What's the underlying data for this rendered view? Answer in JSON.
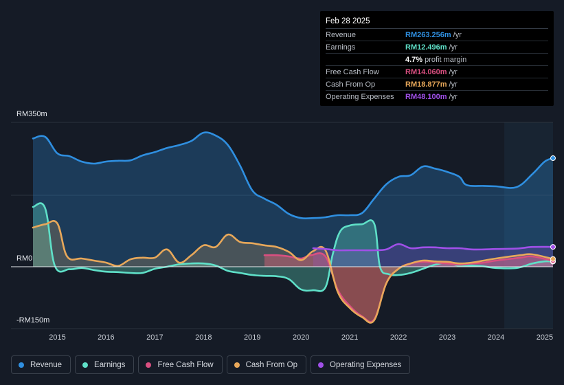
{
  "chart_data": {
    "type": "area",
    "y_unit": "RM",
    "ylim": [
      -150,
      350
    ],
    "y_ticks": [
      {
        "value": 350,
        "label": "RM350m"
      },
      {
        "value": 0,
        "label": "RM0"
      },
      {
        "value": -150,
        "label": "-RM150m"
      }
    ],
    "x_ticks": [
      {
        "value": 2015,
        "label": "2015"
      },
      {
        "value": 2016,
        "label": "2016"
      },
      {
        "value": 2017,
        "label": "2017"
      },
      {
        "value": 2018,
        "label": "2018"
      },
      {
        "value": 2019,
        "label": "2019"
      },
      {
        "value": 2020,
        "label": "2020"
      },
      {
        "value": 2021,
        "label": "2021"
      },
      {
        "value": 2022,
        "label": "2022"
      },
      {
        "value": 2023,
        "label": "2023"
      },
      {
        "value": 2024,
        "label": "2024"
      },
      {
        "value": 2025,
        "label": "2025"
      }
    ],
    "xlim": [
      2014.5,
      2025.17
    ],
    "forecast_start": 2024.17,
    "series": [
      {
        "name": "Revenue",
        "color": "#2f8fe0",
        "points": [
          [
            2014.5,
            311
          ],
          [
            2014.75,
            315
          ],
          [
            2015.0,
            275
          ],
          [
            2015.25,
            268
          ],
          [
            2015.5,
            255
          ],
          [
            2015.75,
            250
          ],
          [
            2016.0,
            255
          ],
          [
            2016.25,
            257
          ],
          [
            2016.5,
            258
          ],
          [
            2016.75,
            270
          ],
          [
            2017.0,
            278
          ],
          [
            2017.25,
            288
          ],
          [
            2017.5,
            295
          ],
          [
            2017.75,
            305
          ],
          [
            2018.0,
            325
          ],
          [
            2018.25,
            318
          ],
          [
            2018.5,
            295
          ],
          [
            2018.75,
            245
          ],
          [
            2019.0,
            185
          ],
          [
            2019.25,
            165
          ],
          [
            2019.5,
            150
          ],
          [
            2019.75,
            128
          ],
          [
            2020.0,
            118
          ],
          [
            2020.25,
            118
          ],
          [
            2020.5,
            120
          ],
          [
            2020.75,
            125
          ],
          [
            2021.0,
            125
          ],
          [
            2021.25,
            130
          ],
          [
            2021.5,
            165
          ],
          [
            2021.75,
            200
          ],
          [
            2022.0,
            218
          ],
          [
            2022.25,
            222
          ],
          [
            2022.5,
            243
          ],
          [
            2022.75,
            238
          ],
          [
            2023.0,
            230
          ],
          [
            2023.25,
            218
          ],
          [
            2023.4,
            198
          ],
          [
            2023.75,
            196
          ],
          [
            2024.0,
            195
          ],
          [
            2024.42,
            193
          ],
          [
            2024.75,
            225
          ],
          [
            2025.0,
            255
          ],
          [
            2025.17,
            263.256
          ]
        ]
      },
      {
        "name": "Earnings",
        "color": "#5fe0c8",
        "points": [
          [
            2014.5,
            145
          ],
          [
            2014.75,
            142
          ],
          [
            2014.95,
            2
          ],
          [
            2015.25,
            -6
          ],
          [
            2015.5,
            -3
          ],
          [
            2015.75,
            -8
          ],
          [
            2016.0,
            -12
          ],
          [
            2016.25,
            -13
          ],
          [
            2016.5,
            -15
          ],
          [
            2016.75,
            -15
          ],
          [
            2017.0,
            -5
          ],
          [
            2017.25,
            0
          ],
          [
            2017.5,
            6
          ],
          [
            2017.75,
            8
          ],
          [
            2018.0,
            8
          ],
          [
            2018.25,
            3
          ],
          [
            2018.5,
            -10
          ],
          [
            2018.75,
            -15
          ],
          [
            2019.0,
            -20
          ],
          [
            2019.25,
            -22
          ],
          [
            2019.5,
            -23
          ],
          [
            2019.75,
            -30
          ],
          [
            2020.0,
            -55
          ],
          [
            2020.25,
            -57
          ],
          [
            2020.5,
            -50
          ],
          [
            2020.65,
            30
          ],
          [
            2020.8,
            85
          ],
          [
            2021.0,
            100
          ],
          [
            2021.25,
            103
          ],
          [
            2021.5,
            105
          ],
          [
            2021.62,
            0
          ],
          [
            2021.8,
            -18
          ],
          [
            2022.0,
            -20
          ],
          [
            2022.25,
            -15
          ],
          [
            2022.5,
            -5
          ],
          [
            2022.75,
            5
          ],
          [
            2023.0,
            10
          ],
          [
            2023.25,
            2
          ],
          [
            2023.5,
            3
          ],
          [
            2023.75,
            1
          ],
          [
            2024.0,
            -3
          ],
          [
            2024.42,
            -3
          ],
          [
            2024.75,
            8
          ],
          [
            2025.0,
            13
          ],
          [
            2025.17,
            12.496
          ]
        ]
      },
      {
        "name": "Free Cash Flow",
        "color": "#d94f80",
        "points": [
          [
            2019.25,
            28
          ],
          [
            2019.5,
            28
          ],
          [
            2019.75,
            25
          ],
          [
            2020.0,
            20
          ],
          [
            2020.2,
            28
          ],
          [
            2020.5,
            25
          ],
          [
            2020.75,
            -55
          ],
          [
            2021.0,
            -95
          ],
          [
            2021.25,
            -120
          ],
          [
            2021.5,
            -128
          ],
          [
            2021.75,
            -40
          ],
          [
            2022.0,
            -5
          ],
          [
            2022.25,
            8
          ],
          [
            2022.5,
            12
          ],
          [
            2022.75,
            10
          ],
          [
            2023.0,
            8
          ],
          [
            2023.25,
            5
          ],
          [
            2023.5,
            8
          ],
          [
            2023.75,
            10
          ],
          [
            2024.0,
            15
          ],
          [
            2024.5,
            22
          ],
          [
            2024.75,
            25
          ],
          [
            2025.17,
            14.06
          ]
        ]
      },
      {
        "name": "Cash From Op",
        "color": "#e8a85a",
        "points": [
          [
            2014.5,
            95
          ],
          [
            2014.75,
            103
          ],
          [
            2015.0,
            105
          ],
          [
            2015.2,
            25
          ],
          [
            2015.5,
            20
          ],
          [
            2015.75,
            15
          ],
          [
            2016.0,
            10
          ],
          [
            2016.25,
            2
          ],
          [
            2016.5,
            18
          ],
          [
            2016.75,
            22
          ],
          [
            2017.0,
            22
          ],
          [
            2017.25,
            42
          ],
          [
            2017.5,
            10
          ],
          [
            2017.75,
            28
          ],
          [
            2018.0,
            52
          ],
          [
            2018.25,
            48
          ],
          [
            2018.5,
            78
          ],
          [
            2018.75,
            60
          ],
          [
            2019.0,
            57
          ],
          [
            2019.25,
            52
          ],
          [
            2019.5,
            48
          ],
          [
            2019.75,
            36
          ],
          [
            2020.0,
            16
          ],
          [
            2020.25,
            38
          ],
          [
            2020.5,
            40
          ],
          [
            2020.75,
            -60
          ],
          [
            2021.0,
            -100
          ],
          [
            2021.25,
            -122
          ],
          [
            2021.5,
            -130
          ],
          [
            2021.75,
            -40
          ],
          [
            2022.0,
            -5
          ],
          [
            2022.25,
            8
          ],
          [
            2022.5,
            15
          ],
          [
            2022.75,
            13
          ],
          [
            2023.0,
            12
          ],
          [
            2023.25,
            8
          ],
          [
            2023.5,
            10
          ],
          [
            2023.75,
            15
          ],
          [
            2024.0,
            20
          ],
          [
            2024.5,
            28
          ],
          [
            2024.75,
            30
          ],
          [
            2025.17,
            18.877
          ]
        ]
      },
      {
        "name": "Operating Expenses",
        "color": "#a050e8",
        "points": [
          [
            2020.25,
            45
          ],
          [
            2020.5,
            43
          ],
          [
            2020.75,
            40
          ],
          [
            2021.0,
            40
          ],
          [
            2021.25,
            40
          ],
          [
            2021.5,
            40
          ],
          [
            2021.75,
            42
          ],
          [
            2022.0,
            55
          ],
          [
            2022.25,
            45
          ],
          [
            2022.5,
            47
          ],
          [
            2022.75,
            47
          ],
          [
            2023.0,
            45
          ],
          [
            2023.25,
            45
          ],
          [
            2023.5,
            42
          ],
          [
            2023.75,
            42
          ],
          [
            2024.0,
            43
          ],
          [
            2024.42,
            44
          ],
          [
            2024.75,
            48
          ],
          [
            2025.17,
            48.1
          ]
        ]
      }
    ]
  },
  "tooltip": {
    "date": "Feb 28 2025",
    "rows": [
      {
        "label": "Revenue",
        "value": "RM263.256m",
        "unit": "/yr",
        "color": "#2f8fe0"
      },
      {
        "label": "Earnings",
        "value": "RM12.496m",
        "unit": "/yr",
        "color": "#5fe0c8"
      },
      {
        "label": "",
        "value": "4.7%",
        "unit": "profit margin",
        "color": "#ffffff"
      },
      {
        "label": "Free Cash Flow",
        "value": "RM14.060m",
        "unit": "/yr",
        "color": "#d94f80"
      },
      {
        "label": "Cash From Op",
        "value": "RM18.877m",
        "unit": "/yr",
        "color": "#e8a85a"
      },
      {
        "label": "Operating Expenses",
        "value": "RM48.100m",
        "unit": "/yr",
        "color": "#a050e8"
      }
    ]
  },
  "legend": [
    {
      "label": "Revenue",
      "color": "#2f8fe0"
    },
    {
      "label": "Earnings",
      "color": "#5fe0c8"
    },
    {
      "label": "Free Cash Flow",
      "color": "#d94f80"
    },
    {
      "label": "Cash From Op",
      "color": "#e8a85a"
    },
    {
      "label": "Operating Expenses",
      "color": "#a050e8"
    }
  ]
}
